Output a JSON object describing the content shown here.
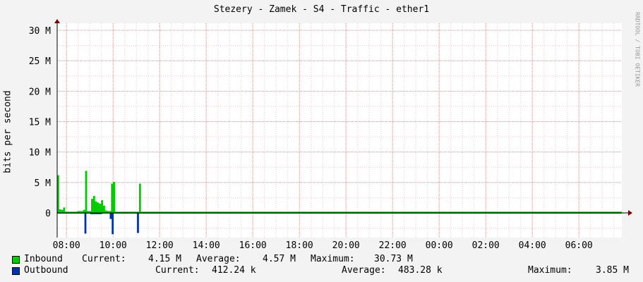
{
  "chart_data": {
    "type": "area",
    "title": "Stezery - Zamek - S4 - Traffic - ether1",
    "ylabel": "bits per second",
    "watermark": "RRDTOOL / TOBI OETIKER",
    "x_ticks": [
      "08:00",
      "10:00",
      "12:00",
      "14:00",
      "16:00",
      "18:00",
      "20:00",
      "22:00",
      "00:00",
      "02:00",
      "04:00",
      "06:00"
    ],
    "y_ticks": [
      "30 M",
      "25 M",
      "20 M",
      "15 M",
      "10 M",
      "5 M",
      "0"
    ],
    "y_tick_values": [
      30,
      25,
      20,
      15,
      10,
      5,
      0
    ],
    "y_unit": "Mbit/s",
    "ylim": [
      -3.9,
      31
    ],
    "grid": true,
    "x_start_hour": 7.6,
    "sample_hours": 0.0833,
    "series": [
      {
        "name": "Inbound",
        "color": "#00cc00",
        "current": "4.15 M",
        "average": "4.57 M",
        "maximum": "30.73 M",
        "values": [
          6.2,
          0.6,
          0.5,
          0.9,
          0.2,
          0.2,
          0.2,
          0.2,
          0.2,
          0.2,
          0.3,
          0.3,
          0.3,
          0.5,
          6.9,
          0.3,
          0.3,
          2.3,
          2.8,
          1.9,
          1.7,
          1.5,
          2.1,
          1.2,
          0.4,
          0.3,
          0.3,
          4.8,
          5.1,
          0.2,
          0.2,
          0.2,
          0.2,
          0.2,
          0.2,
          0.2,
          0.2,
          0.2,
          0.2,
          0.2,
          0.2,
          4.8,
          0.2,
          0.2,
          0.2,
          0.2,
          0.2,
          0.2,
          0.2,
          0.2,
          0.2,
          0.2,
          0.2,
          0.2,
          0.2,
          0.2,
          0.2,
          0.2,
          0.2,
          0.2,
          0.2,
          0.2,
          0.2,
          0.2,
          0.2,
          0.2,
          0.2,
          0.2,
          0.2,
          0.2,
          0.2,
          0.2,
          0.2,
          0.2,
          0.2,
          0.2,
          0.2,
          0.2,
          0.2,
          0.2,
          0.2,
          0.2,
          0.2,
          0.2,
          0.2,
          0.2,
          0.2,
          0.2,
          0.2,
          0.2,
          0.2,
          0.2,
          0.2,
          0.2,
          0.2,
          0.2,
          0.2,
          0.2,
          0.2,
          0.2,
          0.2,
          0.2,
          0.2,
          0.2,
          0.2,
          0.2,
          0.2,
          0.2,
          0.2,
          0.2,
          0.2,
          0.2,
          0.2,
          0.2,
          0.2,
          0.2,
          0.2,
          0.2,
          0.2,
          0.2,
          0.2,
          0.2,
          0.2,
          0.2,
          0.2,
          0.2,
          0.2,
          0.2,
          0.2,
          0.2,
          0.2,
          0.2,
          0.2,
          0.2,
          0.2,
          0.2,
          0.2,
          0.2,
          0.2,
          0.2,
          0.2,
          0.2,
          0.2,
          0.2,
          0.2,
          0.2,
          0.2,
          0.2,
          0.2,
          0.2,
          0.2,
          0.2,
          0.2,
          0.2,
          0.2,
          0.2,
          0.2,
          0.2,
          0.2,
          0.2,
          0.2,
          0.2,
          0.2,
          0.2,
          0.2,
          0.2,
          0.2,
          0.2,
          0.2,
          0.2,
          0.2,
          0.2,
          0.2,
          0.2,
          0.2,
          0.2,
          0.2,
          0.2,
          0.2,
          0.2,
          0.2,
          0.2,
          0.2,
          0.2,
          0.2,
          0.2,
          0.2,
          0.2,
          0.2,
          0.2,
          0.2,
          0.2,
          0.2,
          0.2,
          0.2,
          0.2,
          0.2,
          0.2,
          0.2,
          0.2,
          0.2,
          0.2,
          0.2,
          0.2,
          0.2,
          0.2,
          0.2,
          0.2,
          0.2,
          0.2,
          0.2,
          0.2,
          0.2,
          0.2,
          0.2,
          0.2,
          0.2,
          0.2,
          0.2,
          0.2,
          0.2,
          0.2,
          0.2,
          0.2,
          0.2,
          0.2,
          0.2,
          0.2,
          0.2,
          0.2,
          0.2,
          0.2,
          0.2,
          0.2,
          0.2,
          0.2,
          0.2,
          0.2,
          0.2,
          0.2,
          0.2,
          0.2,
          0.2,
          0.2,
          0.2,
          0.2,
          0.2,
          0.2,
          0.2,
          0.2,
          0.2,
          0.2,
          0.2,
          0.2,
          0.2,
          0.2,
          0.2,
          0.2,
          0.2,
          0.2,
          0.2,
          0.2,
          0.2,
          0.2,
          0.2,
          0.2,
          0.2,
          0.2,
          0.2,
          0.2,
          0.2,
          0.2,
          0.2,
          0.2,
          0.2,
          0.2,
          0.2,
          0.2,
          0.2,
          0.2,
          0.2,
          0.2,
          0.2
        ]
      },
      {
        "name": "Outbound",
        "color": "#0033aa",
        "current": "412.24 k",
        "average": "483.28 k",
        "maximum": "3.85 M",
        "values": [
          -0.1,
          -0.1,
          -0.1,
          -0.1,
          -0.1,
          -0.1,
          -0.1,
          -0.1,
          -0.1,
          -0.1,
          -0.1,
          -0.1,
          -0.1,
          -0.1,
          -3.4,
          -0.1,
          -0.1,
          -0.2,
          -0.2,
          -0.2,
          -0.2,
          -0.2,
          -0.2,
          -0.1,
          -0.1,
          -0.1,
          -0.1,
          -1.0,
          -3.5,
          -0.1,
          -0.1,
          -0.1,
          -0.1,
          -0.1,
          -0.1,
          -0.1,
          -0.1,
          -0.1,
          -0.1,
          -0.1,
          -0.1,
          -3.3,
          -0.1,
          -0.1,
          -0.1,
          -0.1,
          -0.1,
          -0.1,
          -0.1,
          -0.1,
          -0.1,
          -0.1,
          -0.1,
          -0.1,
          -0.1,
          -0.1,
          -0.1,
          -0.1,
          -0.1,
          -0.1,
          -0.1,
          -0.1,
          -0.1,
          -0.1,
          -0.1,
          -0.1,
          -0.1,
          -0.1,
          -0.1,
          -0.1,
          -0.1,
          -0.1,
          -0.1,
          -0.1,
          -0.1,
          -0.1,
          -0.1,
          -0.1,
          -0.1,
          -0.1,
          -0.1,
          -0.1,
          -0.1,
          -0.1,
          -0.1,
          -0.1,
          -0.1,
          -0.1,
          -0.1,
          -0.1,
          -0.1,
          -0.1,
          -0.1,
          -0.1,
          -0.1,
          -0.1,
          -0.1,
          -0.1,
          -0.1,
          -0.1,
          -0.1,
          -0.1,
          -0.1,
          -0.1,
          -0.1,
          -0.1,
          -0.1,
          -0.1,
          -0.1,
          -0.1,
          -0.1,
          -0.1,
          -0.1,
          -0.1,
          -0.1,
          -0.1,
          -0.1,
          -0.1,
          -0.1,
          -0.1,
          -0.1,
          -0.1,
          -0.1,
          -0.1,
          -0.1,
          -0.1,
          -0.1,
          -0.1,
          -0.1,
          -0.1,
          -0.1,
          -0.1,
          -0.1,
          -0.1,
          -0.1,
          -0.1,
          -0.1,
          -0.1,
          -0.1,
          -0.1,
          -0.1,
          -0.1,
          -0.1,
          -0.1,
          -0.1,
          -0.1,
          -0.1,
          -0.1,
          -0.1,
          -0.1,
          -0.1,
          -0.1,
          -0.1,
          -0.1,
          -0.1,
          -0.1,
          -0.1,
          -0.1,
          -0.1,
          -0.1,
          -0.1,
          -0.1,
          -0.1,
          -0.1,
          -0.1,
          -0.1,
          -0.1,
          -0.1,
          -0.1,
          -0.1,
          -0.1,
          -0.1,
          -0.1,
          -0.1,
          -0.1,
          -0.1,
          -0.1,
          -0.1,
          -0.1,
          -0.1,
          -0.1,
          -0.1,
          -0.1,
          -0.1,
          -0.1,
          -0.1,
          -0.1,
          -0.1,
          -0.1,
          -0.1,
          -0.1,
          -0.1,
          -0.1,
          -0.1,
          -0.1,
          -0.1,
          -0.1,
          -0.1,
          -0.1,
          -0.1,
          -0.1,
          -0.1,
          -0.1,
          -0.1,
          -0.1,
          -0.1,
          -0.1,
          -0.1,
          -0.1,
          -0.1,
          -0.1,
          -0.1,
          -0.1,
          -0.1,
          -0.1,
          -0.1,
          -0.1,
          -0.1,
          -0.1,
          -0.1,
          -0.1,
          -0.1,
          -0.1,
          -0.1,
          -0.1,
          -0.1,
          -0.1,
          -0.1,
          -0.1,
          -0.1,
          -0.1,
          -0.1,
          -0.1,
          -0.1,
          -0.1,
          -0.1,
          -0.1,
          -0.1,
          -0.1,
          -0.1,
          -0.1,
          -0.1,
          -0.1,
          -0.1,
          -0.1,
          -0.1,
          -0.1,
          -0.1,
          -0.1,
          -0.1,
          -0.1,
          -0.1,
          -0.1,
          -0.1,
          -0.1,
          -0.1,
          -0.1,
          -0.1,
          -0.1,
          -0.1,
          -0.1,
          -0.1,
          -0.1,
          -0.1,
          -0.1,
          -0.1,
          -0.1,
          -0.1,
          -0.1,
          -0.1,
          -0.1,
          -0.1,
          -0.1,
          -0.1,
          -0.1,
          -0.1,
          -0.1,
          -0.1,
          -0.1,
          -0.1,
          -0.1,
          -0.1,
          -0.1,
          -0.1,
          -0.1,
          -0.1,
          -0.1,
          -0.1,
          -0.1,
          -0.1
        ]
      }
    ]
  },
  "legend": {
    "inbound": {
      "name": "Inbound",
      "current_label": "Current:",
      "current": "4.15 M",
      "average_label": "Average:",
      "average": "4.57 M",
      "maximum_label": "Maximum:",
      "maximum": "30.73 M"
    },
    "outbound": {
      "name": "Outbound",
      "current_label": "Current:",
      "current": "412.24 k",
      "average_label": "Average:",
      "average": "483.28 k",
      "maximum_label": "Maximum:",
      "maximum": "3.85 M"
    }
  }
}
